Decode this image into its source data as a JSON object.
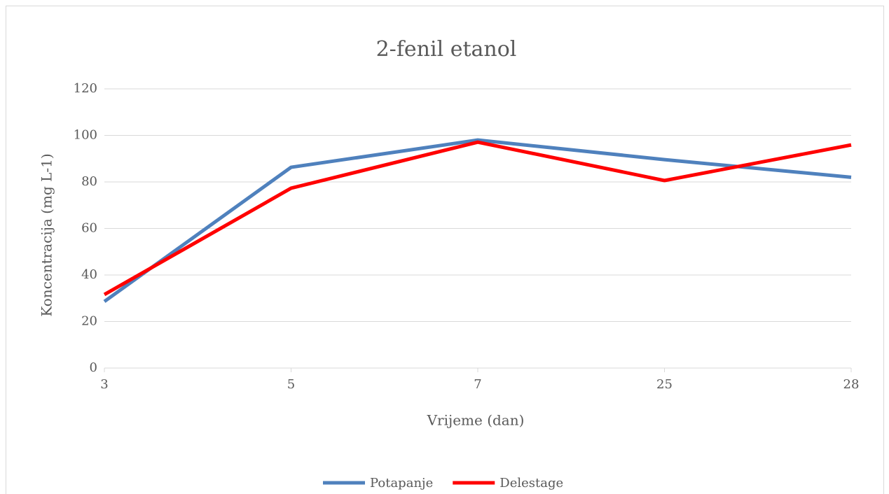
{
  "chart_data": {
    "type": "line",
    "title": "2-fenil etanol",
    "x_label": "Vrijeme (dan)",
    "y_label": "Koncentracija (mg L-1)",
    "categories": [
      "3",
      "5",
      "7",
      "25",
      "28"
    ],
    "series": [
      {
        "name": "Potapanje",
        "color": "#4f81bd",
        "values": [
          28.6,
          86.3,
          98,
          89.6,
          82
        ]
      },
      {
        "name": "Delestage",
        "color": "#ff0000",
        "values": [
          31.6,
          77.3,
          97.1,
          80.6,
          95.9
        ]
      }
    ],
    "ylim": [
      0,
      120
    ],
    "yticks": [
      0,
      20,
      40,
      60,
      80,
      100,
      120
    ],
    "grid": true,
    "legend": "bottom"
  }
}
